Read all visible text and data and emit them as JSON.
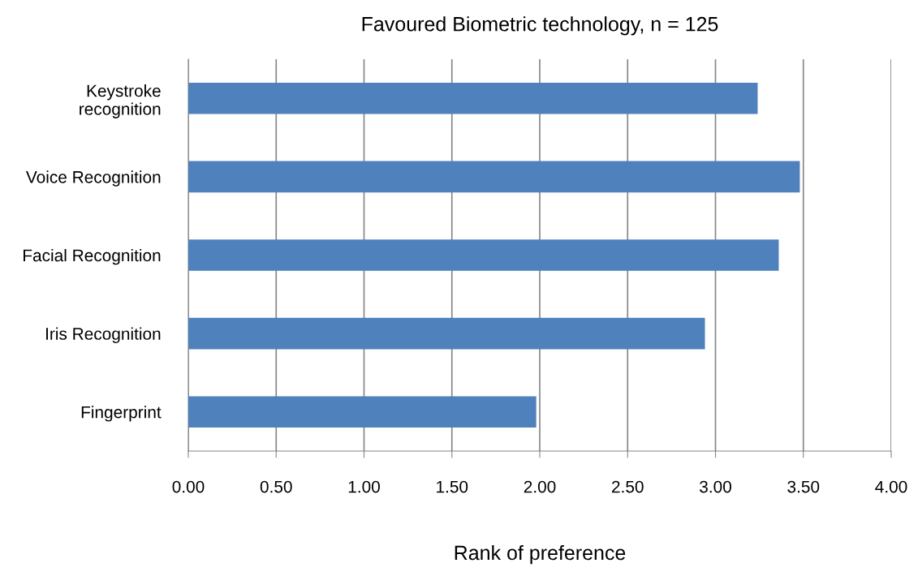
{
  "chart_data": {
    "type": "bar",
    "orientation": "horizontal",
    "title": "Favoured Biometric technology, n = 125",
    "xlabel": "Rank of preference",
    "categories": [
      "Keystroke\nrecognition",
      "Voice Recognition",
      "Facial Recognition",
      "Iris Recognition",
      "Fingerprint"
    ],
    "values": [
      3.24,
      3.48,
      3.36,
      2.94,
      1.98
    ],
    "color": "#4f81bd",
    "xlim": [
      0,
      4
    ],
    "xticks": [
      {
        "value": 0,
        "label": "0.00"
      },
      {
        "value": 0.5,
        "label": "0.50"
      },
      {
        "value": 1,
        "label": "1.00"
      },
      {
        "value": 1.5,
        "label": "1.50"
      },
      {
        "value": 2,
        "label": "2.00"
      },
      {
        "value": 2.5,
        "label": "2.50"
      },
      {
        "value": 3,
        "label": "3.00"
      },
      {
        "value": 3.5,
        "label": "3.50"
      },
      {
        "value": 4,
        "label": "4.00"
      }
    ],
    "grid": "x",
    "legend": false
  }
}
